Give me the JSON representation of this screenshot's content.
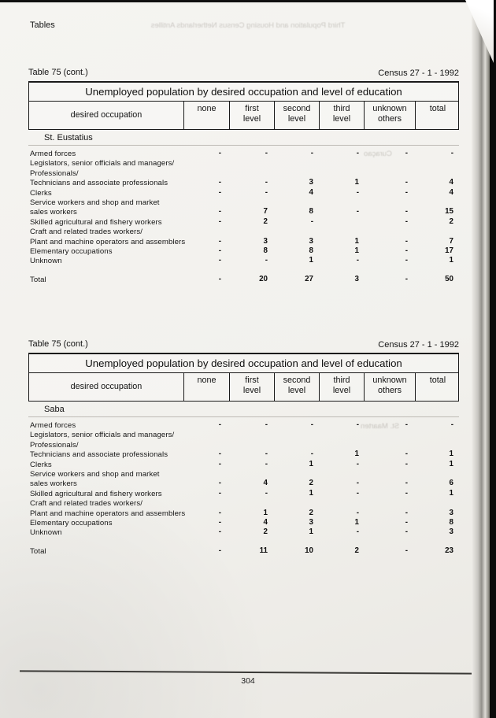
{
  "page": {
    "corner_label": "Tables",
    "page_number": "304"
  },
  "artifacts": {
    "bleed": [
      {
        "text": "Third Population and Housing Census Netherlands Antilles"
      },
      {
        "text": "Curaçao"
      },
      {
        "text": "St. Maarten"
      }
    ]
  },
  "tables": [
    {
      "caption_left": "Table 75 (cont.)",
      "caption_right": "Census 27 - 1 - 1992",
      "title": "Unemployed population by desired occupation and level of education",
      "columns": {
        "occupation": "desired occupation",
        "levels": [
          "none",
          "first\nlevel",
          "second\nlevel",
          "third\nlevel",
          "unknown\nothers",
          "total"
        ]
      },
      "section": "St. Eustatius",
      "rows": [
        {
          "label": "Armed forces",
          "values": [
            "-",
            "-",
            "-",
            "-",
            "-",
            "-"
          ]
        },
        {
          "label": "Legislators, senior officials and managers/",
          "values": [
            "",
            "",
            "",
            "",
            "",
            ""
          ]
        },
        {
          "label": "Professionals/",
          "values": [
            "",
            "",
            "",
            "",
            "",
            ""
          ]
        },
        {
          "label": "Technicians and associate professionals",
          "values": [
            "-",
            "-",
            "3",
            "1",
            "-",
            "4"
          ]
        },
        {
          "label": "Clerks",
          "values": [
            "-",
            "-",
            "4",
            "-",
            "-",
            "4"
          ]
        },
        {
          "label": "Service workers and shop and market",
          "values": [
            "",
            "",
            "",
            "",
            "",
            ""
          ]
        },
        {
          "label": "sales workers",
          "values": [
            "-",
            "7",
            "8",
            "-",
            "-",
            "15"
          ]
        },
        {
          "label": "Skilled agricultural and fishery workers",
          "values": [
            "-",
            "2",
            "-",
            "",
            "-",
            "2"
          ]
        },
        {
          "label": "Craft and related trades workers/",
          "values": [
            "",
            "",
            "",
            "",
            "",
            ""
          ]
        },
        {
          "label": "Plant and machine operators and assemblers",
          "values": [
            "-",
            "3",
            "3",
            "1",
            "-",
            "7"
          ]
        },
        {
          "label": "Elementary occupations",
          "values": [
            "-",
            "8",
            "8",
            "1",
            "-",
            "17"
          ]
        },
        {
          "label": "Unknown",
          "values": [
            "-",
            "-",
            "1",
            "-",
            "-",
            "1"
          ]
        },
        {
          "label": "Total",
          "values": [
            "-",
            "20",
            "27",
            "3",
            "-",
            "50"
          ],
          "is_total": true
        }
      ]
    },
    {
      "caption_left": "Table 75 (cont.)",
      "caption_right": "Census 27 - 1 - 1992",
      "title": "Unemployed population by desired occupation and level of education",
      "columns": {
        "occupation": "desired occupation",
        "levels": [
          "none",
          "first\nlevel",
          "second\nlevel",
          "third\nlevel",
          "unknown\nothers",
          "total"
        ]
      },
      "section": "Saba",
      "rows": [
        {
          "label": "Armed forces",
          "values": [
            "-",
            "-",
            "-",
            "-",
            "-",
            "-"
          ]
        },
        {
          "label": "Legislators, senior officials and managers/",
          "values": [
            "",
            "",
            "",
            "",
            "",
            ""
          ]
        },
        {
          "label": "Professionals/",
          "values": [
            "",
            "",
            "",
            "",
            "",
            ""
          ]
        },
        {
          "label": "Technicians and associate professionals",
          "values": [
            "-",
            "-",
            "-",
            "1",
            "-",
            "1"
          ]
        },
        {
          "label": "Clerks",
          "values": [
            "-",
            "-",
            "1",
            "-",
            "-",
            "1"
          ]
        },
        {
          "label": "Service workers and shop and market",
          "values": [
            "",
            "",
            "",
            "",
            "",
            ""
          ]
        },
        {
          "label": "sales workers",
          "values": [
            "-",
            "4",
            "2",
            "-",
            "-",
            "6"
          ]
        },
        {
          "label": "Skilled agricultural and fishery workers",
          "values": [
            "-",
            "-",
            "1",
            "-",
            "-",
            "1"
          ]
        },
        {
          "label": "Craft and related trades workers/",
          "values": [
            "",
            "",
            "",
            "",
            "",
            ""
          ]
        },
        {
          "label": "Plant and machine operators and assemblers",
          "values": [
            "-",
            "1",
            "2",
            "-",
            "-",
            "3"
          ]
        },
        {
          "label": "Elementary occupations",
          "values": [
            "-",
            "4",
            "3",
            "1",
            "-",
            "8"
          ]
        },
        {
          "label": "Unknown",
          "values": [
            "-",
            "2",
            "1",
            "-",
            "-",
            "3"
          ]
        },
        {
          "label": "Total",
          "values": [
            "-",
            "11",
            "10",
            "2",
            "-",
            "23"
          ],
          "is_total": true
        }
      ]
    }
  ]
}
